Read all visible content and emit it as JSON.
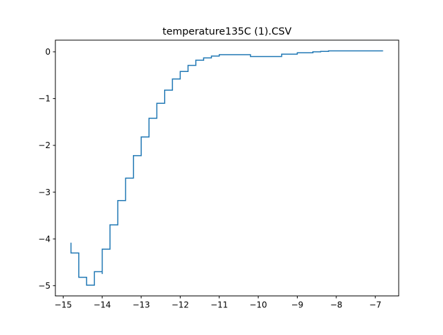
{
  "chart_data": {
    "type": "line",
    "title": "temperature135C (1).CSV",
    "xlabel": "",
    "ylabel": "",
    "xlim": [
      -15.2,
      -6.4
    ],
    "ylim": [
      -5.22,
      0.25
    ],
    "xticks": [
      -15,
      -14,
      -13,
      -12,
      -11,
      -10,
      -9,
      -8,
      -7
    ],
    "yticks": [
      0,
      -1,
      -2,
      -3,
      -4,
      -5
    ],
    "xtick_labels": [
      "−15",
      "−14",
      "−13",
      "−12",
      "−11",
      "−10",
      "−9",
      "−8",
      "−7"
    ],
    "ytick_labels": [
      "0",
      "−1",
      "−2",
      "−3",
      "−4",
      "−5"
    ],
    "grid": false,
    "series": [
      {
        "color": "#1f77b4",
        "step": "post",
        "x": [
          -14.8,
          -14.8,
          -14.6,
          -14.4,
          -14.2,
          -14.0,
          -14.0,
          -13.8,
          -13.6,
          -13.4,
          -13.2,
          -13.0,
          -12.8,
          -12.6,
          -12.4,
          -12.2,
          -12.0,
          -11.8,
          -11.6,
          -11.4,
          -11.2,
          -11.0,
          -10.2,
          -9.4,
          -9.0,
          -8.6,
          -8.4,
          -8.2,
          -6.8
        ],
        "y": [
          -4.08,
          -4.3,
          -4.82,
          -4.99,
          -4.7,
          -4.75,
          -4.22,
          -3.7,
          -3.18,
          -2.7,
          -2.22,
          -1.82,
          -1.42,
          -1.1,
          -0.82,
          -0.58,
          -0.42,
          -0.29,
          -0.18,
          -0.13,
          -0.09,
          -0.06,
          -0.1,
          -0.05,
          -0.02,
          0.0,
          0.01,
          0.02,
          0.02
        ]
      }
    ]
  }
}
